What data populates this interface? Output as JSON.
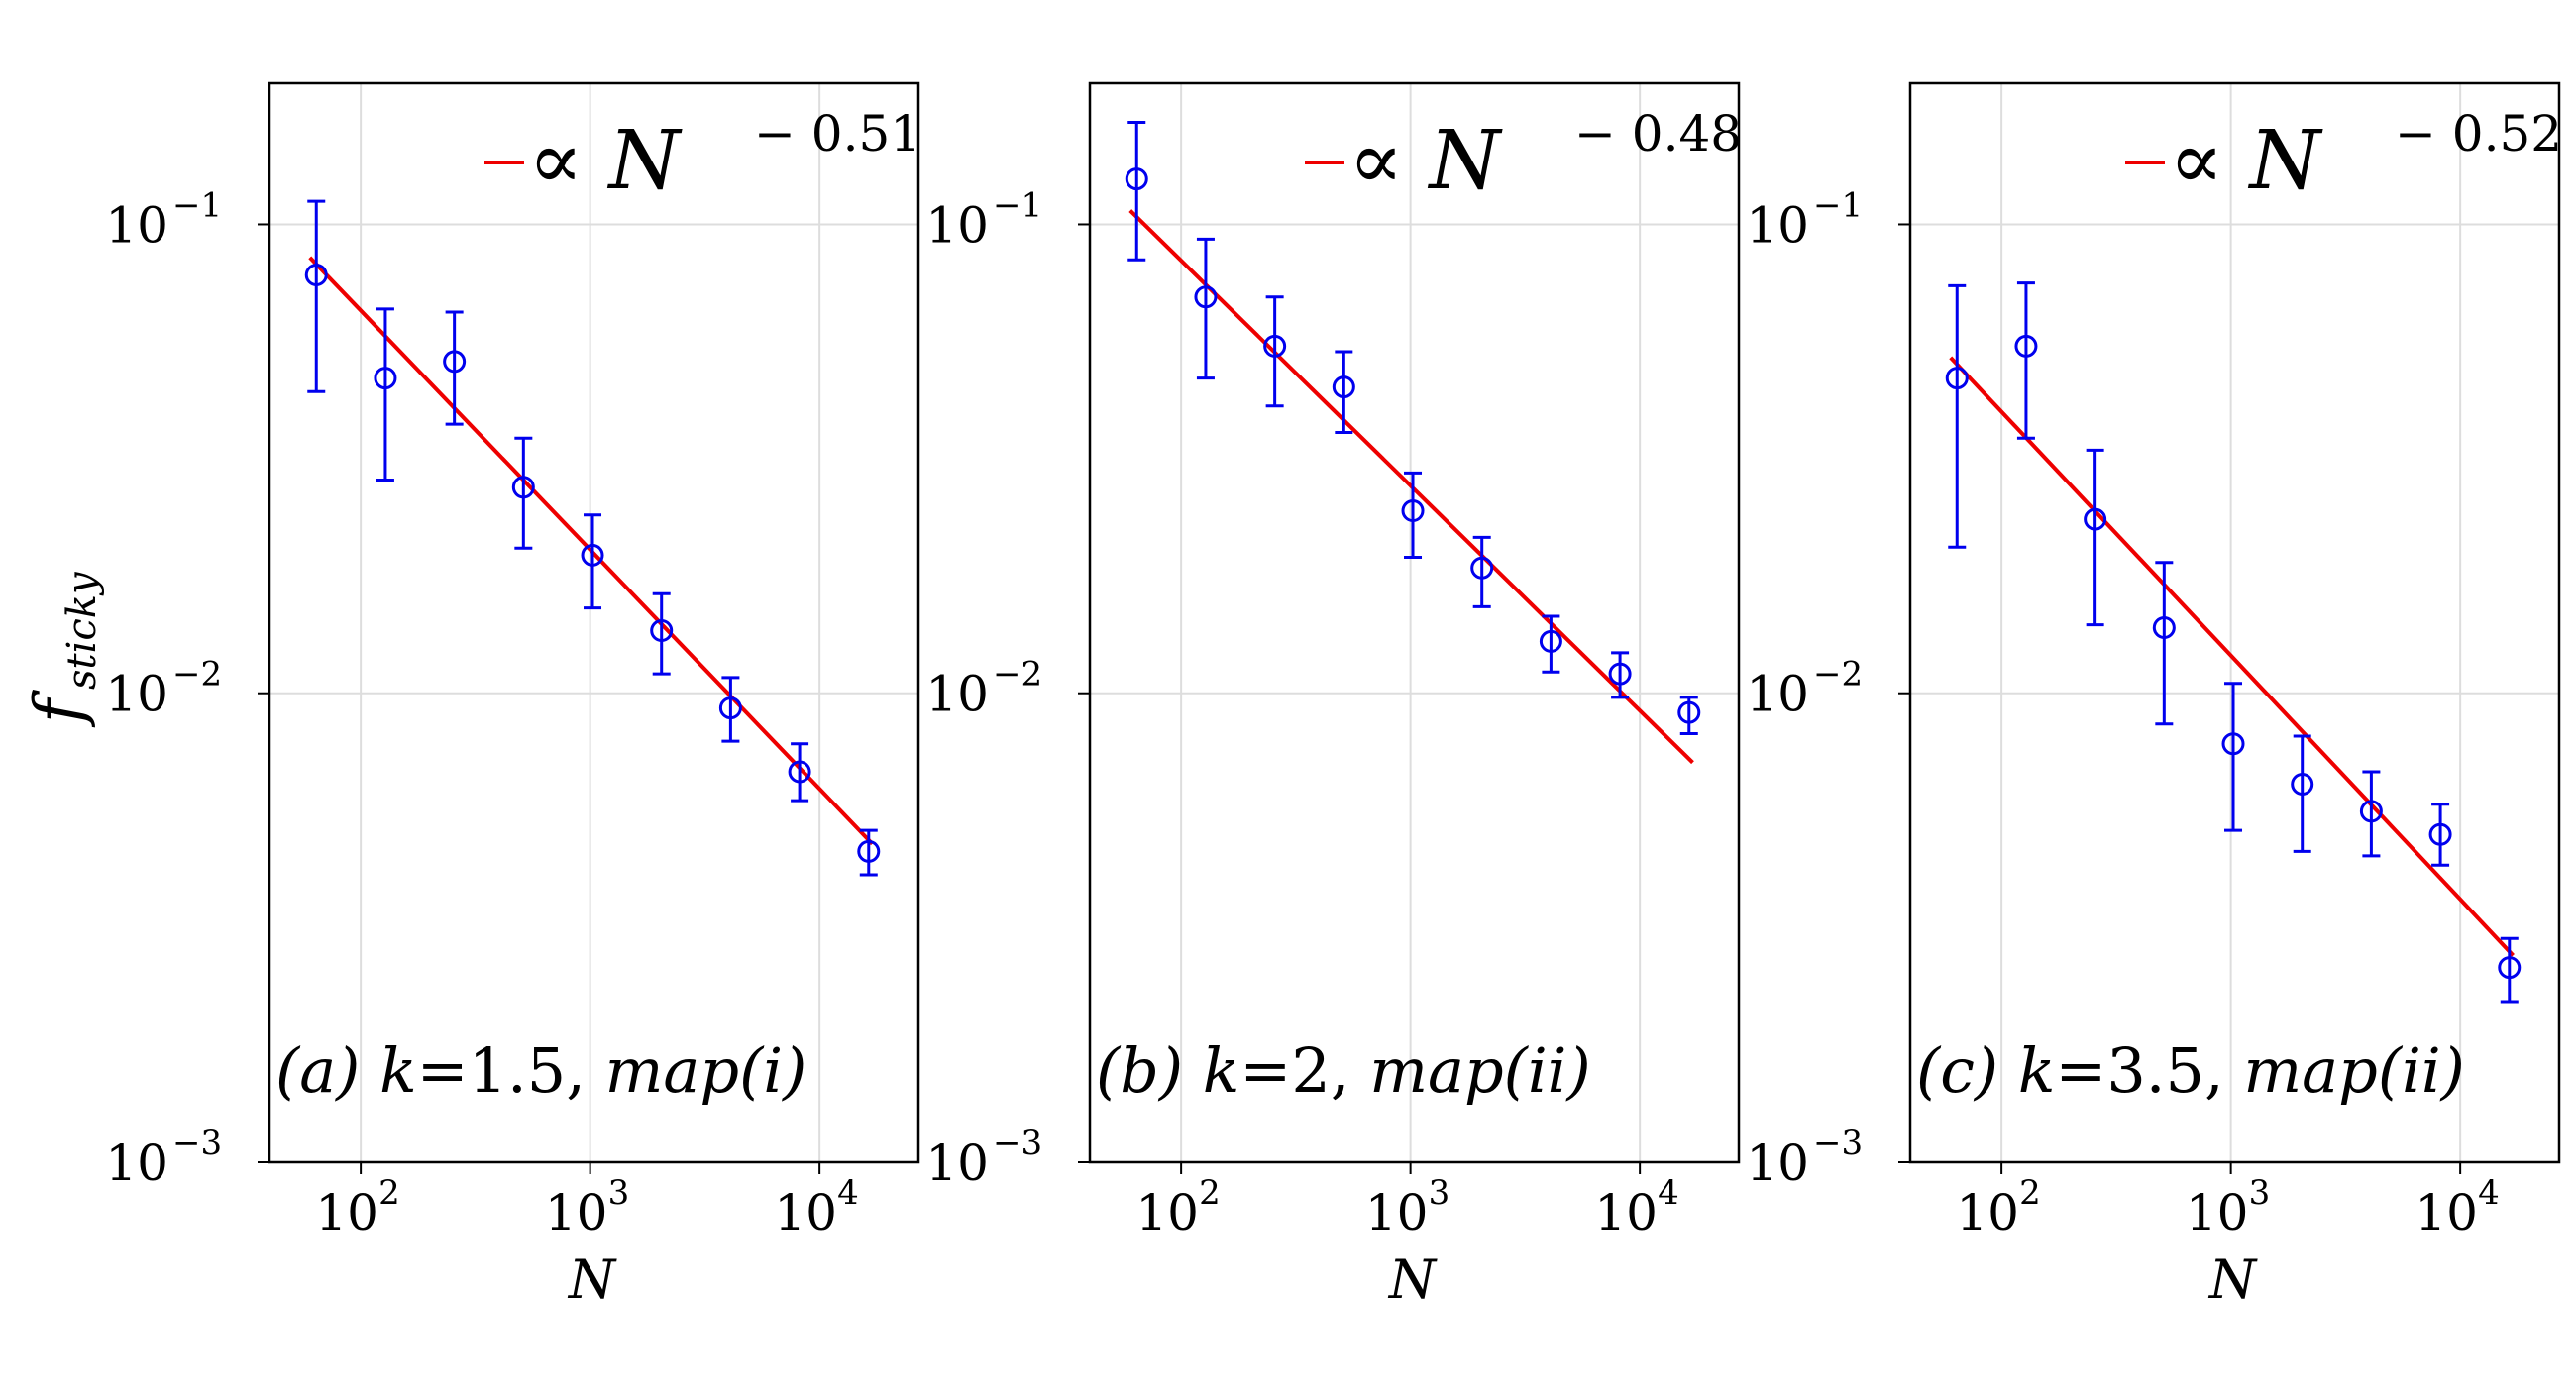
{
  "figure": {
    "ylabel": "f",
    "ylabel_sub": "sticky",
    "xlabel": "N"
  },
  "colors": {
    "data": "#0000ee",
    "fit": "#ee0000",
    "grid": "#dddddd",
    "frame": "#000000"
  },
  "chart_data": [
    {
      "type": "scatter",
      "panel": "a",
      "annotation": {
        "label": "(a)",
        "kvar": "k",
        "eq": "=",
        "k": "1.5,",
        "map": "map(i)"
      },
      "legend": {
        "prefix": "∝ N",
        "exponent": "− 0.51"
      },
      "xscale": "log",
      "yscale": "log",
      "xlim": [
        40,
        27000
      ],
      "ylim": [
        0.001,
        0.2
      ],
      "xticks": [
        {
          "base": "10",
          "exp": "2",
          "value": 100
        },
        {
          "base": "10",
          "exp": "3",
          "value": 1000
        },
        {
          "base": "10",
          "exp": "4",
          "value": 10000
        }
      ],
      "yticks": [
        {
          "base": "10",
          "exp": "−1",
          "value": 0.1
        },
        {
          "base": "10",
          "exp": "−2",
          "value": 0.01
        },
        {
          "base": "10",
          "exp": "−3",
          "value": 0.001
        }
      ],
      "x": [
        64,
        128,
        256,
        512,
        1024,
        2048,
        4096,
        8192,
        16384
      ],
      "y": [
        0.078,
        0.047,
        0.051,
        0.0275,
        0.0197,
        0.0136,
        0.0093,
        0.0068,
        0.0046
      ],
      "yerr_low": [
        0.044,
        0.0285,
        0.0375,
        0.0204,
        0.0152,
        0.011,
        0.0079,
        0.0059,
        0.0041
      ],
      "yerr_high": [
        0.112,
        0.066,
        0.065,
        0.035,
        0.024,
        0.0163,
        0.0108,
        0.0078,
        0.0051
      ],
      "fit": {
        "exponent": -0.51,
        "x_start": 60,
        "x_end": 17000,
        "y_at_start": 0.085
      }
    },
    {
      "type": "scatter",
      "panel": "b",
      "annotation": {
        "label": "(b)",
        "kvar": "k",
        "eq": "=",
        "k": "2,",
        "map": "map(ii)"
      },
      "legend": {
        "prefix": "∝ N",
        "exponent": "− 0.48"
      },
      "xscale": "log",
      "yscale": "log",
      "xlim": [
        40,
        27000
      ],
      "ylim": [
        0.001,
        0.2
      ],
      "xticks": [
        {
          "base": "10",
          "exp": "2",
          "value": 100
        },
        {
          "base": "10",
          "exp": "3",
          "value": 1000
        },
        {
          "base": "10",
          "exp": "4",
          "value": 10000
        }
      ],
      "yticks": [
        {
          "base": "10",
          "exp": "−1",
          "value": 0.1
        },
        {
          "base": "10",
          "exp": "−2",
          "value": 0.01
        },
        {
          "base": "10",
          "exp": "−3",
          "value": 0.001
        }
      ],
      "x": [
        64,
        128,
        256,
        512,
        1024,
        2048,
        4096,
        8192,
        16384
      ],
      "y": [
        0.125,
        0.07,
        0.055,
        0.045,
        0.0245,
        0.0185,
        0.0129,
        0.011,
        0.0091
      ],
      "yerr_low": [
        0.084,
        0.047,
        0.041,
        0.036,
        0.0195,
        0.0153,
        0.0111,
        0.0098,
        0.0082
      ],
      "yerr_high": [
        0.165,
        0.093,
        0.07,
        0.0535,
        0.0295,
        0.0215,
        0.0146,
        0.0122,
        0.0098
      ],
      "fit": {
        "exponent": -0.48,
        "x_start": 60,
        "x_end": 17000,
        "y_at_start": 0.107
      }
    },
    {
      "type": "scatter",
      "panel": "c",
      "annotation": {
        "label": "(c)",
        "kvar": "k",
        "eq": "=",
        "k": "3.5,",
        "map": "map(ii)"
      },
      "legend": {
        "prefix": "∝ N",
        "exponent": "− 0.52"
      },
      "xscale": "log",
      "yscale": "log",
      "xlim": [
        40,
        27000
      ],
      "ylim": [
        0.001,
        0.2
      ],
      "xticks": [
        {
          "base": "10",
          "exp": "2",
          "value": 100
        },
        {
          "base": "10",
          "exp": "3",
          "value": 1000
        },
        {
          "base": "10",
          "exp": "4",
          "value": 10000
        }
      ],
      "yticks": [
        {
          "base": "10",
          "exp": "−1",
          "value": 0.1
        },
        {
          "base": "10",
          "exp": "−2",
          "value": 0.01
        },
        {
          "base": "10",
          "exp": "−3",
          "value": 0.001
        }
      ],
      "x": [
        64,
        128,
        256,
        512,
        1024,
        2048,
        4096,
        8192,
        16384
      ],
      "y": [
        0.047,
        0.055,
        0.0235,
        0.0138,
        0.0078,
        0.0064,
        0.0056,
        0.005,
        0.0026
      ],
      "yerr_low": [
        0.0205,
        0.035,
        0.014,
        0.0086,
        0.0051,
        0.0046,
        0.0045,
        0.0043,
        0.0022
      ],
      "yerr_high": [
        0.074,
        0.075,
        0.033,
        0.019,
        0.0105,
        0.0081,
        0.0068,
        0.0058,
        0.003
      ],
      "fit": {
        "exponent": -0.52,
        "x_start": 60,
        "x_end": 17000,
        "y_at_start": 0.052
      }
    }
  ]
}
